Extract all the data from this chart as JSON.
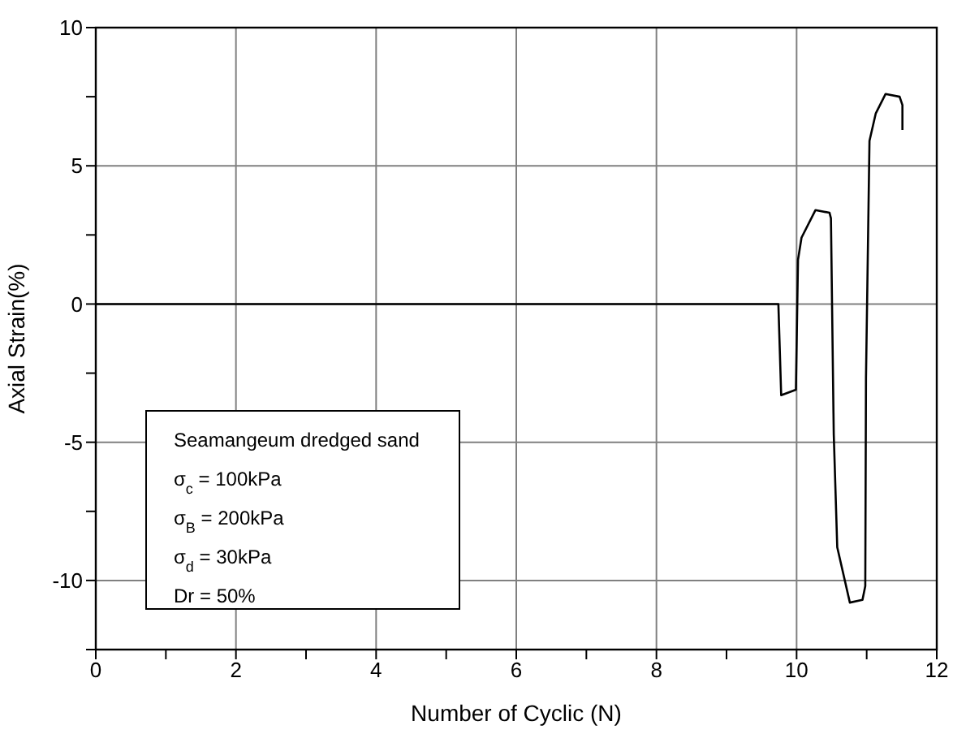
{
  "chart_data": {
    "type": "line",
    "xlabel": "Number of Cyclic (N)",
    "ylabel": "Axial Strain(%)",
    "xlim": [
      0,
      12
    ],
    "ylim": [
      -12.5,
      10
    ],
    "xticks": [
      0,
      {
        "value": 1,
        "label": null
      },
      2,
      {
        "value": 3,
        "label": null
      },
      4,
      {
        "value": 5,
        "label": null
      },
      6,
      {
        "value": 7,
        "label": null
      },
      8,
      {
        "value": 9,
        "label": null
      },
      10,
      {
        "value": 11,
        "label": null
      },
      12
    ],
    "yticks": [
      {
        "value": -12.5,
        "label": null
      },
      -10,
      {
        "value": -7.5,
        "label": null
      },
      -5,
      {
        "value": -2.5,
        "label": null
      },
      0,
      {
        "value": 2.5,
        "label": null
      },
      5,
      {
        "value": 7.5,
        "label": null
      },
      10
    ],
    "grid": true,
    "legend": false,
    "marker": "none",
    "line_style": "solid",
    "series": [
      {
        "color": "#000000",
        "x": [
          0,
          1,
          2,
          3,
          4,
          5,
          6,
          7,
          8,
          9,
          9.74,
          9.78,
          9.99,
          10.02,
          10.07,
          10.27,
          10.47,
          10.49,
          10.53,
          10.58,
          10.76,
          10.94,
          10.98,
          10.99,
          11.04,
          11.13,
          11.27,
          11.47,
          11.51,
          11.51
        ],
        "values": [
          0,
          0,
          0,
          0,
          0,
          0,
          0,
          0,
          0,
          0,
          0,
          -3.3,
          -3.1,
          1.6,
          2.4,
          3.4,
          3.3,
          3.1,
          -4.7,
          -8.8,
          -10.8,
          -10.7,
          -10.2,
          -2.7,
          5.9,
          6.9,
          7.6,
          7.5,
          7.2,
          6.3
        ]
      }
    ],
    "annotations": [
      "Seamangeum dredged sand",
      "σ$_{c}$ = 100kPa",
      "σ$_{B}$ = 200kPa",
      "σ$_{d}$ = 30kPa",
      "Dr = 50%"
    ]
  }
}
